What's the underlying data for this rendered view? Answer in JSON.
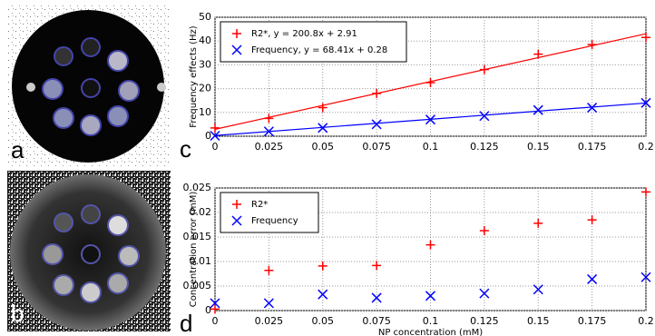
{
  "panels": [
    {
      "label": "a"
    },
    {
      "label": "b"
    }
  ],
  "chart_data": [
    {
      "type": "scatter",
      "panel_label": "c",
      "ylabel": "Frequency effects (Hz)",
      "x": [
        0,
        0.025,
        0.05,
        0.075,
        0.1,
        0.125,
        0.15,
        0.175,
        0.2
      ],
      "series": [
        {
          "name": "R2*, y = 200.8x + 2.91",
          "color": "#ff0000",
          "marker": "plus",
          "values": [
            3.5,
            7.5,
            12,
            18,
            22.5,
            28,
            34.5,
            38.5,
            41.5
          ],
          "fit_x": [
            0,
            0.2
          ],
          "fit_values": [
            2.91,
            43.07
          ]
        },
        {
          "name": "Frequency, y = 68.41x + 0.28",
          "color": "#0000ff",
          "marker": "cross",
          "values": [
            0.2,
            2,
            3.5,
            5,
            7,
            8.5,
            11,
            12,
            14
          ],
          "fit_x": [
            0,
            0.2
          ],
          "fit_values": [
            0.28,
            13.96
          ]
        }
      ],
      "xlim": [
        0,
        0.2
      ],
      "xticks": [
        0,
        0.025,
        0.05,
        0.075,
        0.1,
        0.125,
        0.15,
        0.175,
        0.2
      ],
      "ylim": [
        0,
        50
      ],
      "yticks": [
        0,
        10,
        20,
        30,
        40,
        50
      ],
      "grid": true,
      "legend": "upper left"
    },
    {
      "type": "scatter",
      "panel_label": "d",
      "xlabel": "NP concentration (mM)",
      "ylabel": "Concentration error (mM)",
      "x": [
        0,
        0.025,
        0.05,
        0.075,
        0.1,
        0.125,
        0.15,
        0.175,
        0.2
      ],
      "series": [
        {
          "name": "R2*",
          "color": "#ff0000",
          "marker": "plus",
          "values": [
            0.0003,
            0.0082,
            0.0091,
            0.0092,
            0.0134,
            0.0163,
            0.0178,
            0.0185,
            0.0242
          ]
        },
        {
          "name": "Frequency",
          "color": "#0000ff",
          "marker": "cross",
          "values": [
            0.0015,
            0.0015,
            0.0033,
            0.0026,
            0.003,
            0.0035,
            0.0043,
            0.0064,
            0.0068
          ]
        }
      ],
      "xlim": [
        0,
        0.2
      ],
      "xticks": [
        0,
        0.025,
        0.05,
        0.075,
        0.1,
        0.125,
        0.15,
        0.175,
        0.2
      ],
      "ylim": [
        0,
        0.025
      ],
      "yticks": [
        0,
        0.005,
        0.01,
        0.015,
        0.02,
        0.025
      ],
      "grid": true,
      "legend": "upper left"
    }
  ]
}
